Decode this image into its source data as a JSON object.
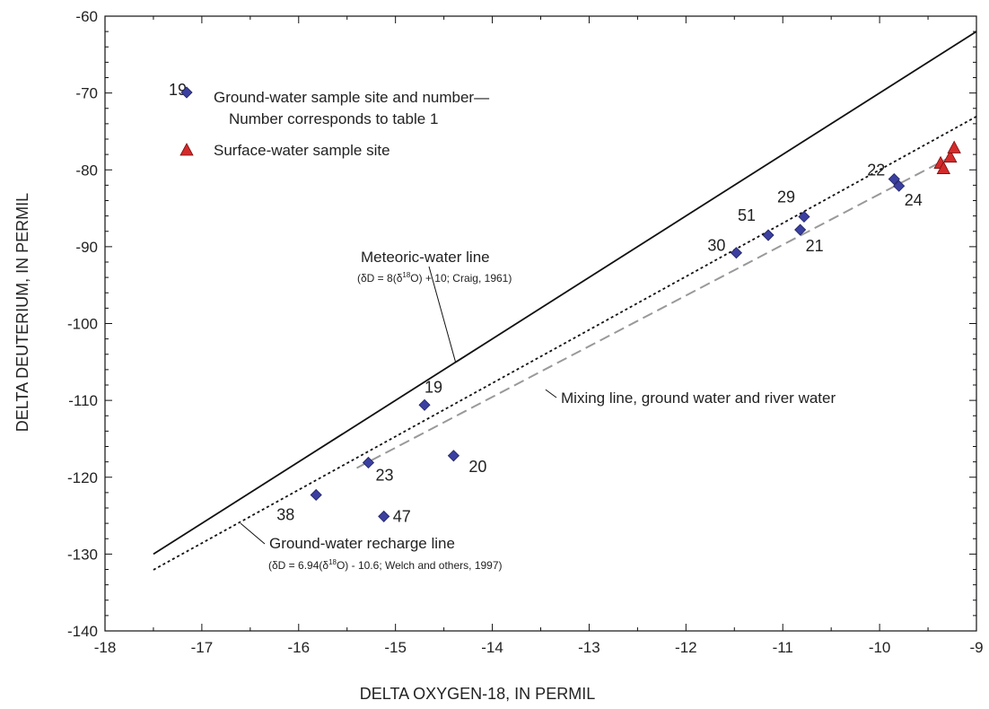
{
  "chart_data": {
    "type": "scatter",
    "xlabel": "DELTA OXYGEN-18, IN PERMIL",
    "ylabel": "DELTA DEUTERIUM, IN PERMIL",
    "xlim": [
      -18,
      -9
    ],
    "ylim": [
      -140,
      -60
    ],
    "xticks": [
      -18,
      -17,
      -16,
      -15,
      -14,
      -13,
      -12,
      -11,
      -10,
      -9
    ],
    "yticks": [
      -140,
      -130,
      -120,
      -110,
      -100,
      -90,
      -80,
      -70,
      -60
    ],
    "xtick_labels": [
      "-18",
      "-17",
      "-16",
      "-15",
      "-14",
      "-13",
      "-12",
      "-11",
      "-10",
      "-9"
    ],
    "ytick_labels": [
      "-140",
      "-130",
      "-120",
      "-110",
      "-100",
      "-90",
      "-80",
      "-70",
      "-60"
    ],
    "grid": false,
    "series": [
      {
        "name": "Ground-water sample site and number—Number corresponds to table 1",
        "marker": "diamond",
        "color": "#3b3fa0",
        "points": [
          {
            "label": "19",
            "x": -14.7,
            "y": -110.6
          },
          {
            "label": "20",
            "x": -14.4,
            "y": -117.2
          },
          {
            "label": "21",
            "x": -10.82,
            "y": -87.8
          },
          {
            "label": "22",
            "x": -9.85,
            "y": -81.2
          },
          {
            "label": "23",
            "x": -15.28,
            "y": -118.1
          },
          {
            "label": "24",
            "x": -9.8,
            "y": -82.1
          },
          {
            "label": "29",
            "x": -10.78,
            "y": -86.1
          },
          {
            "label": "30",
            "x": -11.48,
            "y": -90.8
          },
          {
            "label": "38",
            "x": -15.82,
            "y": -122.3
          },
          {
            "label": "47",
            "x": -15.12,
            "y": -125.1
          },
          {
            "label": "51",
            "x": -11.15,
            "y": -88.5
          }
        ]
      },
      {
        "name": "Surface-water sample site",
        "marker": "triangle",
        "color": "#d42b2b",
        "points": [
          {
            "x": -9.37,
            "y": -79.1
          },
          {
            "x": -9.34,
            "y": -79.8
          },
          {
            "x": -9.27,
            "y": -78.3
          },
          {
            "x": -9.23,
            "y": -77.1
          }
        ]
      }
    ],
    "lines": [
      {
        "name": "Meteoric-water line",
        "equation": "(δD = 8(δ¹⁸O) + 10; Craig, 1961)",
        "style": "solid",
        "color": "#111111",
        "x": [
          -17.5,
          -9
        ],
        "y": [
          -130,
          -62
        ]
      },
      {
        "name": "Ground-water recharge line",
        "equation": "(δD = 6.94(δ¹⁸O) - 10.6; Welch and others, 1997)",
        "style": "dotted",
        "color": "#111111",
        "x": [
          -17.5,
          -9
        ],
        "y": [
          -132.05,
          -73.06
        ]
      },
      {
        "name": "Mixing line, ground water and river water",
        "style": "dashed",
        "color": "#999999",
        "x": [
          -15.4,
          -9.28
        ],
        "y": [
          -118.8,
          -78.4
        ]
      }
    ],
    "legend": {
      "position": "top-left",
      "sample_number": "19",
      "ground_water_line1": "Ground-water sample site and number—",
      "ground_water_line2": "Number corresponds to table 1",
      "surface_water": "Surface-water sample site"
    },
    "annotations": {
      "meteoric_label": "Meteoric-water line",
      "meteoric_equation_prefix": "(δD = 8(δ",
      "meteoric_equation_sup": "18",
      "meteoric_equation_suffix": "O) + 10; Craig, 1961)",
      "recharge_label": "Ground-water recharge line",
      "recharge_equation_prefix": "(δD = 6.94(δ",
      "recharge_equation_sup": "18",
      "recharge_equation_suffix": "O) - 10.6; Welch and others, 1997)",
      "mixing_label": "Mixing line, ground water and river water"
    }
  }
}
